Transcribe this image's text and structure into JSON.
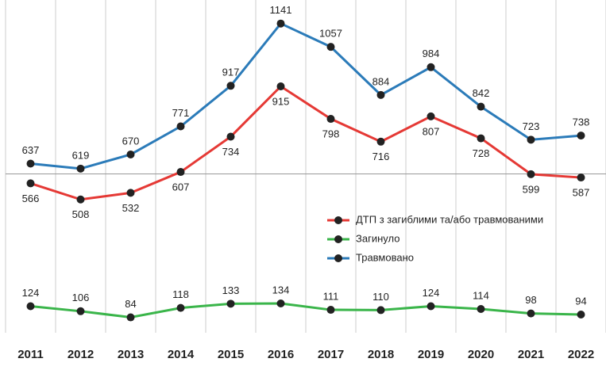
{
  "chart_data": {
    "type": "line",
    "categories": [
      "2011",
      "2012",
      "2013",
      "2014",
      "2015",
      "2016",
      "2017",
      "2018",
      "2019",
      "2020",
      "2021",
      "2022"
    ],
    "series": [
      {
        "name": "ДТП з загиблими та/або травмованими",
        "color": "#e53935",
        "values": [
          566,
          508,
          532,
          607,
          734,
          915,
          798,
          716,
          807,
          728,
          599,
          587
        ]
      },
      {
        "name": "Загинуло",
        "color": "#3ab54a",
        "values": [
          124,
          106,
          84,
          118,
          133,
          134,
          111,
          110,
          124,
          114,
          98,
          94
        ]
      },
      {
        "name": "Травмовано",
        "color": "#2b7bb9",
        "values": [
          637,
          619,
          670,
          771,
          917,
          1141,
          1057,
          884,
          984,
          842,
          723,
          738
        ]
      }
    ],
    "ylim": [
      0,
      1200
    ],
    "yticks": [
      600
    ],
    "grid": true
  }
}
